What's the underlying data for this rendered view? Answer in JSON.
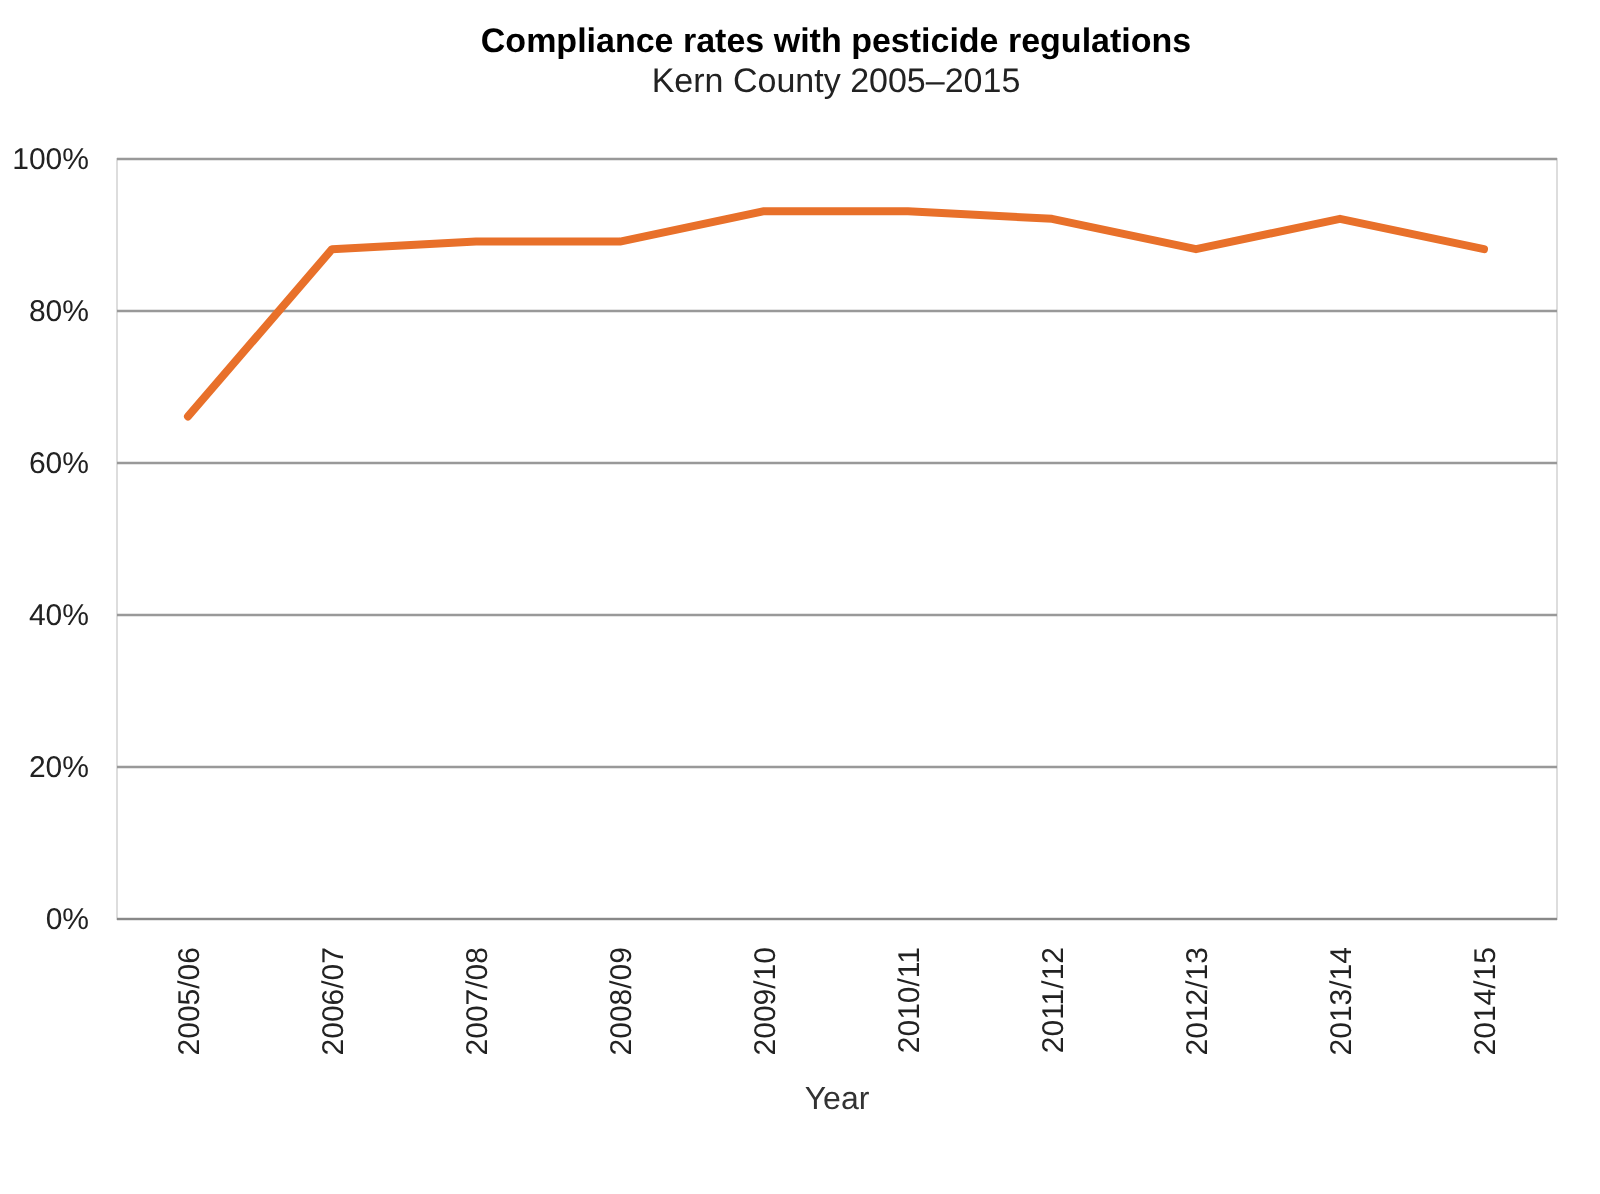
{
  "chart_data": {
    "type": "line",
    "title": "Compliance rates with pesticide regulations",
    "subtitle": "Kern County 2005–2015",
    "xlabel": "Year",
    "categories": [
      "2005/06",
      "2006/07",
      "2007/08",
      "2008/09",
      "2009/10",
      "2010/11",
      "2011/12",
      "2012/13",
      "2013/14",
      "2014/15"
    ],
    "series": [
      {
        "color": "#e8702a",
        "values": [
          66,
          88,
          89,
          89,
          93,
          93,
          92,
          88,
          92,
          88
        ]
      }
    ],
    "ylim": [
      0,
      100
    ],
    "yticks": [
      {
        "value": 0,
        "label": "0%"
      },
      {
        "value": 20,
        "label": "20%"
      },
      {
        "value": 40,
        "label": "40%"
      },
      {
        "value": 60,
        "label": "60%"
      },
      {
        "value": 80,
        "label": "80%"
      },
      {
        "value": 100,
        "label": "100%"
      }
    ],
    "grid": "y",
    "marker": "none",
    "line_style": "solid"
  }
}
